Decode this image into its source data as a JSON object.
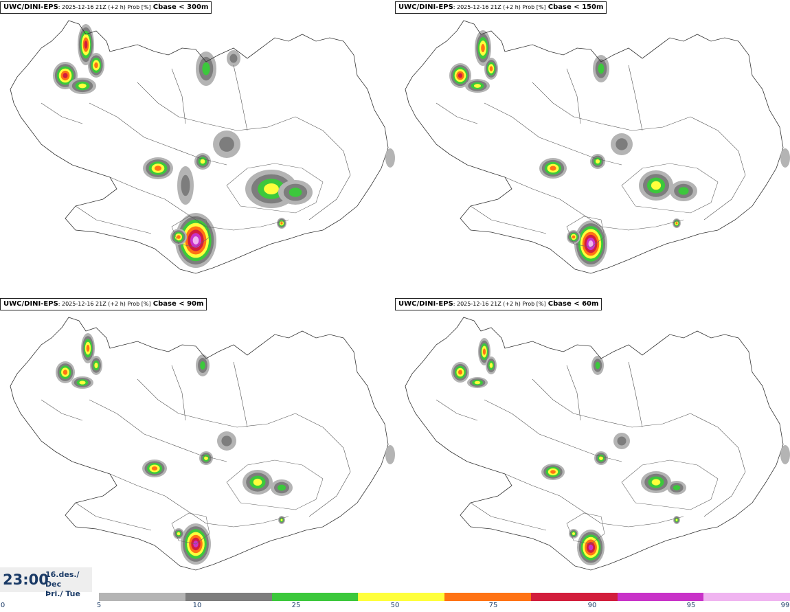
{
  "panels": [
    {
      "model": "UWC/DINI-EPS",
      "meta": ": 2025-12-16 21Z (+2 h) Prob [%]",
      "param": "Cbase < 300m"
    },
    {
      "model": "UWC/DINI-EPS",
      "meta": ": 2025-12-16 21Z (+2 h) Prob [%]",
      "param": "Cbase < 150m"
    },
    {
      "model": "UWC/DINI-EPS",
      "meta": ": 2025-12-16 21Z (+2 h) Prob [%]",
      "param": "Cbase < 90m"
    },
    {
      "model": "UWC/DINI-EPS",
      "meta": ": 2025-12-16 21Z (+2 h) Prob [%]",
      "param": "Cbase < 60m"
    }
  ],
  "timestamp": {
    "time": "23:00",
    "date_line1": "16.des./ Dec",
    "date_line2": "Þri./ Tue"
  },
  "legend": {
    "ticks": [
      "0",
      "5",
      "10",
      "25",
      "50",
      "75",
      "90",
      "95",
      "99"
    ],
    "colors": [
      "#b4b4b4",
      "#7d7d7d",
      "#3cc83c",
      "#ffff3c",
      "#ff7314",
      "#d21e3c",
      "#c832c8",
      "#f0b4f0"
    ]
  }
}
